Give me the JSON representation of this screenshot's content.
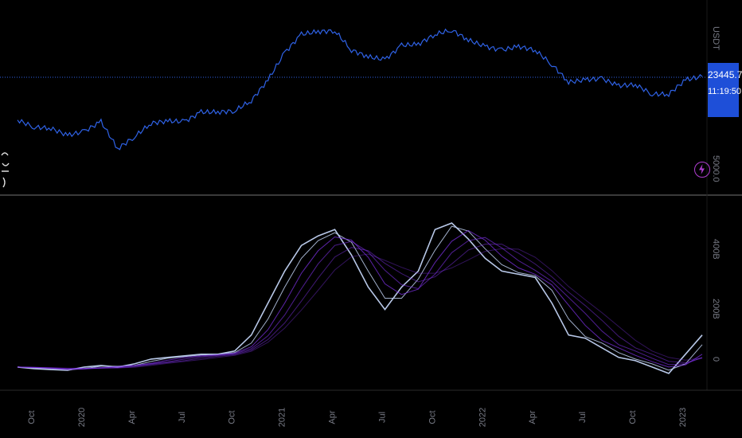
{
  "colors": {
    "background": "#000000",
    "price_line": "#2f62e6",
    "price_badge": "#1e4fd8",
    "indicator_light": "#b8c8e8",
    "indicator_purple": "#7a2fe0",
    "divider": "#3a3a3a",
    "axis_text": "#787b86"
  },
  "top_pane": {
    "currency_label": "USDT",
    "last_price": "23445.7",
    "countdown": "11:19:50",
    "log_tick": "5000.0",
    "icon": "lightning-icon"
  },
  "bottom_pane": {
    "ticks": [
      "400B",
      "200B",
      "0"
    ]
  },
  "x_axis": {
    "labels": [
      "Oct",
      "2020",
      "Apr",
      "Jul",
      "Oct",
      "2021",
      "Apr",
      "Jul",
      "Oct",
      "2022",
      "Apr",
      "Jul",
      "Oct",
      "2023"
    ]
  },
  "chart_data": [
    {
      "type": "line",
      "title": "",
      "series": [
        {
          "x": [
            "2019-09",
            "2019-10",
            "2019-11",
            "2019-12",
            "2020-01",
            "2020-02",
            "2020-03",
            "2020-04",
            "2020-05",
            "2020-06",
            "2020-07",
            "2020-08",
            "2020-09",
            "2020-10",
            "2020-11",
            "2020-12",
            "2021-01",
            "2021-02",
            "2021-03",
            "2021-04",
            "2021-05",
            "2021-06",
            "2021-07",
            "2021-08",
            "2021-09",
            "2021-10",
            "2021-11",
            "2021-12",
            "2022-01",
            "2022-02",
            "2022-03",
            "2022-04",
            "2022-05",
            "2022-06",
            "2022-07",
            "2022-08",
            "2022-09",
            "2022-10",
            "2022-11",
            "2022-12",
            "2023-01",
            "2023-02"
          ],
          "values": [
            9800,
            8500,
            8300,
            7200,
            7800,
            9500,
            5500,
            7000,
            9200,
            9600,
            9500,
            11500,
            11500,
            11800,
            14500,
            22000,
            38000,
            55000,
            58000,
            59000,
            40000,
            35000,
            33000,
            44000,
            45000,
            55000,
            60000,
            49000,
            43000,
            40000,
            43000,
            40000,
            30000,
            21000,
            22000,
            22500,
            19500,
            20000,
            16500,
            16500,
            22000,
            23500
          ]
        }
      ],
      "currency": "USDT",
      "y_scale": "log",
      "yticks": [
        "5000.0"
      ]
    },
    {
      "type": "line",
      "title": "",
      "series": [
        {
          "x": [
            "2019-09",
            "2019-10",
            "2019-11",
            "2019-12",
            "2020-01",
            "2020-02",
            "2020-03",
            "2020-04",
            "2020-05",
            "2020-06",
            "2020-07",
            "2020-08",
            "2020-09",
            "2020-10",
            "2020-11",
            "2020-12",
            "2021-01",
            "2021-02",
            "2021-03",
            "2021-04",
            "2021-05",
            "2021-06",
            "2021-07",
            "2021-08",
            "2021-09",
            "2021-10",
            "2021-11",
            "2021-12",
            "2022-01",
            "2022-02",
            "2022-03",
            "2022-04",
            "2022-05",
            "2022-06",
            "2022-07",
            "2022-08",
            "2022-09",
            "2022-10",
            "2022-11",
            "2022-12",
            "2023-01",
            "2023-02"
          ],
          "values": [
            0,
            -5,
            -8,
            -10,
            0,
            5,
            0,
            10,
            25,
            30,
            35,
            40,
            40,
            50,
            100,
            200,
            300,
            380,
            410,
            430,
            350,
            250,
            180,
            250,
            300,
            430,
            450,
            400,
            340,
            300,
            290,
            280,
            200,
            100,
            90,
            60,
            30,
            20,
            0,
            -20,
            40,
            100
          ]
        }
      ],
      "yticks": [
        "400B",
        "200B",
        "0"
      ],
      "ylim": [
        -60,
        520
      ]
    }
  ]
}
